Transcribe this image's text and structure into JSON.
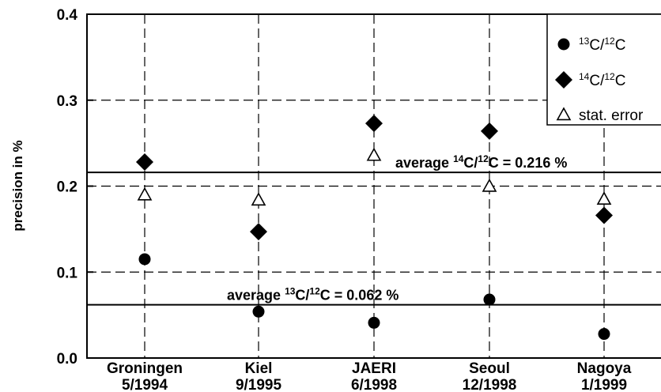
{
  "chart_data": {
    "type": "scatter",
    "ylabel": "precision in %",
    "xlabel": "",
    "ylim": [
      0.0,
      0.4
    ],
    "yticks": [
      "0.0",
      "0.1",
      "0.2",
      "0.3",
      "0.4"
    ],
    "grid": true,
    "legend_position": "top-right",
    "categories": [
      {
        "name": "Groningen",
        "date": "5/1994"
      },
      {
        "name": "Kiel",
        "date": "9/1995"
      },
      {
        "name": "JAERI",
        "date": "6/1998"
      },
      {
        "name": "Seoul",
        "date": "12/1998"
      },
      {
        "name": "Nagoya",
        "date": "1/1999"
      }
    ],
    "series": [
      {
        "legend_main": "C/",
        "legend_sup1": "13",
        "legend_sup2": "12",
        "legend_tail": "C",
        "marker": "circle",
        "values": [
          0.115,
          0.054,
          0.041,
          0.068,
          0.028
        ]
      },
      {
        "legend_main": "C/",
        "legend_sup1": "14",
        "legend_sup2": "12",
        "legend_tail": "C",
        "marker": "diamond",
        "values": [
          0.228,
          0.147,
          0.273,
          0.264,
          0.166
        ]
      },
      {
        "legend_label": "stat. error",
        "marker": "triangle-open",
        "values": [
          0.19,
          0.184,
          0.236,
          0.2,
          0.185
        ]
      }
    ],
    "reference_lines": [
      {
        "value": 0.216,
        "pre": "average ",
        "sup1": "14",
        "mid": "C/",
        "sup2": "12",
        "post": "C = 0.216 %"
      },
      {
        "value": 0.062,
        "pre": "average ",
        "sup1": "13",
        "mid": "C/",
        "sup2": "12",
        "post": "C = 0.062 %"
      }
    ]
  }
}
